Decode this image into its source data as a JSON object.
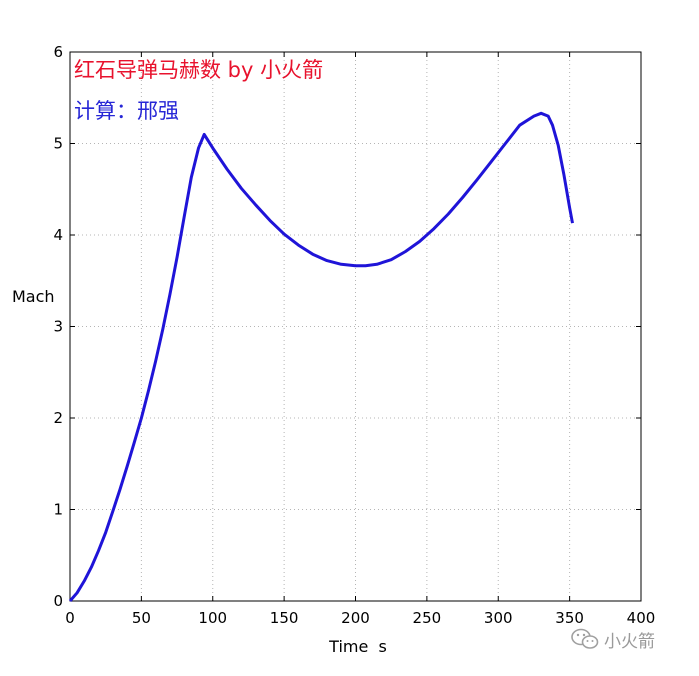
{
  "chart_data": {
    "type": "line",
    "xlabel": "Time  s",
    "ylabel": "Mach",
    "xlim": [
      0,
      400
    ],
    "ylim": [
      0,
      6
    ],
    "xticks": [
      0,
      50,
      100,
      150,
      200,
      250,
      300,
      350,
      400
    ],
    "yticks": [
      0,
      1,
      2,
      3,
      4,
      5,
      6
    ],
    "grid": true,
    "annotations": [
      {
        "text": "红石导弹马赫数 by 小火箭",
        "color": "#e8122d"
      },
      {
        "text": "计算：邢强",
        "color": "#2727d6"
      }
    ],
    "series": [
      {
        "color": "#1f14d8",
        "x": [
          0,
          5,
          10,
          15,
          20,
          25,
          30,
          35,
          40,
          45,
          50,
          55,
          60,
          65,
          70,
          75,
          80,
          85,
          90,
          94,
          100,
          110,
          120,
          130,
          140,
          150,
          160,
          170,
          180,
          190,
          200,
          207,
          215,
          225,
          235,
          245,
          255,
          265,
          275,
          285,
          295,
          305,
          315,
          325,
          330,
          335,
          338,
          342,
          346,
          350,
          352
        ],
        "y": [
          0.0,
          0.09,
          0.22,
          0.37,
          0.55,
          0.75,
          0.98,
          1.22,
          1.47,
          1.73,
          2.0,
          2.3,
          2.62,
          2.97,
          3.35,
          3.76,
          4.2,
          4.63,
          4.95,
          5.1,
          4.95,
          4.72,
          4.51,
          4.33,
          4.16,
          4.01,
          3.89,
          3.79,
          3.72,
          3.68,
          3.665,
          3.665,
          3.68,
          3.73,
          3.82,
          3.93,
          4.07,
          4.23,
          4.41,
          4.6,
          4.8,
          5.0,
          5.2,
          5.3,
          5.33,
          5.3,
          5.2,
          4.98,
          4.66,
          4.3,
          4.13
        ]
      }
    ]
  },
  "watermark": {
    "text": "小火箭",
    "icon": "wechat-icon"
  }
}
